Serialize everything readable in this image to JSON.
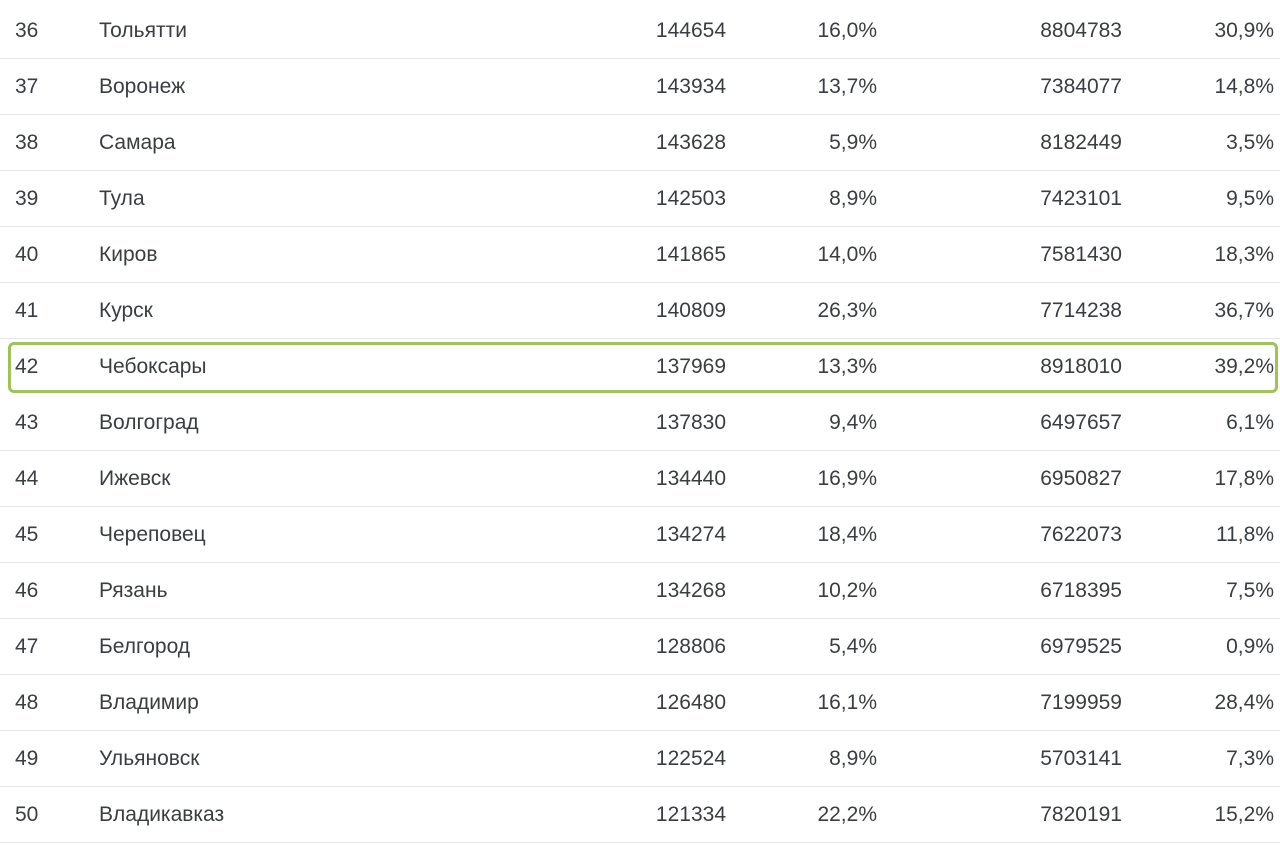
{
  "table": {
    "highlight_rank": "42",
    "highlight_color": "#9fc25a",
    "rows": [
      {
        "rank": "36",
        "city": "Тольятти",
        "value1": "144654",
        "pct1": "16,0%",
        "value2": "8804783",
        "pct2": "30,9%"
      },
      {
        "rank": "37",
        "city": "Воронеж",
        "value1": "143934",
        "pct1": "13,7%",
        "value2": "7384077",
        "pct2": "14,8%"
      },
      {
        "rank": "38",
        "city": "Самара",
        "value1": "143628",
        "pct1": "5,9%",
        "value2": "8182449",
        "pct2": "3,5%"
      },
      {
        "rank": "39",
        "city": "Тула",
        "value1": "142503",
        "pct1": "8,9%",
        "value2": "7423101",
        "pct2": "9,5%"
      },
      {
        "rank": "40",
        "city": "Киров",
        "value1": "141865",
        "pct1": "14,0%",
        "value2": "7581430",
        "pct2": "18,3%"
      },
      {
        "rank": "41",
        "city": "Курск",
        "value1": "140809",
        "pct1": "26,3%",
        "value2": "7714238",
        "pct2": "36,7%"
      },
      {
        "rank": "42",
        "city": "Чебоксары",
        "value1": "137969",
        "pct1": "13,3%",
        "value2": "8918010",
        "pct2": "39,2%"
      },
      {
        "rank": "43",
        "city": "Волгоград",
        "value1": "137830",
        "pct1": "9,4%",
        "value2": "6497657",
        "pct2": "6,1%"
      },
      {
        "rank": "44",
        "city": "Ижевск",
        "value1": "134440",
        "pct1": "16,9%",
        "value2": "6950827",
        "pct2": "17,8%"
      },
      {
        "rank": "45",
        "city": "Череповец",
        "value1": "134274",
        "pct1": "18,4%",
        "value2": "7622073",
        "pct2": "11,8%"
      },
      {
        "rank": "46",
        "city": "Рязань",
        "value1": "134268",
        "pct1": "10,2%",
        "value2": "6718395",
        "pct2": "7,5%"
      },
      {
        "rank": "47",
        "city": "Белгород",
        "value1": "128806",
        "pct1": "5,4%",
        "value2": "6979525",
        "pct2": "0,9%"
      },
      {
        "rank": "48",
        "city": "Владимир",
        "value1": "126480",
        "pct1": "16,1%",
        "value2": "7199959",
        "pct2": "28,4%"
      },
      {
        "rank": "49",
        "city": "Ульяновск",
        "value1": "122524",
        "pct1": "8,9%",
        "value2": "5703141",
        "pct2": "7,3%"
      },
      {
        "rank": "50",
        "city": "Владикавказ",
        "value1": "121334",
        "pct1": "22,2%",
        "value2": "7820191",
        "pct2": "15,2%"
      }
    ]
  }
}
